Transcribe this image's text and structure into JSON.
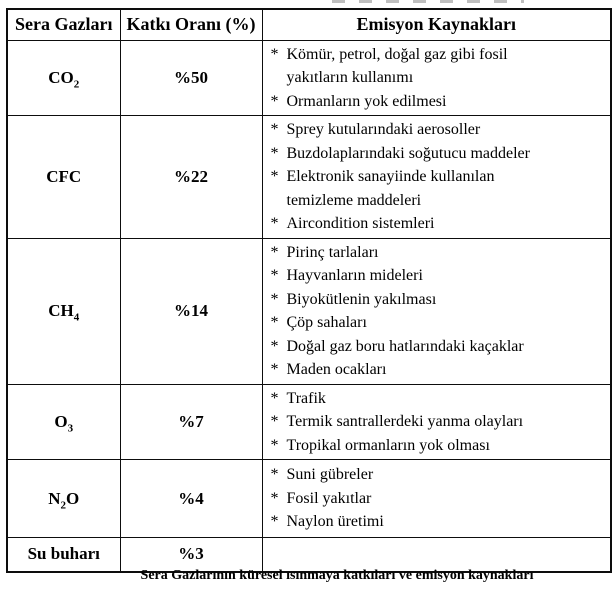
{
  "table": {
    "bullet_char": "*",
    "headers": [
      "Sera Gazları",
      "Katkı Oranı (%)",
      "Emisyon Kaynakları"
    ],
    "rows": [
      {
        "gas_pre": "CO",
        "gas_sub": "2",
        "gas_post": "",
        "percent": "%50",
        "sources": [
          "Kömür, petrol, doğal gaz gibi fosil\nyakıtların kullanımı",
          "Ormanların yok edilmesi"
        ]
      },
      {
        "gas_pre": "CFC",
        "gas_sub": "",
        "gas_post": "",
        "percent": "%22",
        "sources": [
          "Sprey kutularındaki aerosoller",
          "Buzdolaplarındaki soğutucu maddeler",
          "Elektronik sanayiinde kullanılan\ntemizleme maddeleri",
          "Aircondition sistemleri"
        ]
      },
      {
        "gas_pre": "CH",
        "gas_sub": "4",
        "gas_post": "",
        "percent": "%14",
        "sources": [
          "Pirinç tarlaları",
          "Hayvanların mideleri",
          "Biyokütlenin yakılması",
          "Çöp sahaları",
          "Doğal gaz boru hatlarındaki kaçaklar",
          "Maden ocakları"
        ]
      },
      {
        "gas_pre": "O",
        "gas_sub": "3",
        "gas_post": "",
        "percent": "%7",
        "sources": [
          "Trafik",
          "Termik santrallerdeki yanma olayları",
          "Tropikal ormanların yok olması"
        ]
      },
      {
        "gas_pre": "N",
        "gas_sub": "2",
        "gas_post": "O",
        "percent": "%4",
        "sources": [
          "Suni gübreler",
          "Fosil yakıtlar",
          "Naylon üretimi"
        ]
      },
      {
        "gas_pre": "Su buharı",
        "gas_sub": "",
        "gas_post": "",
        "percent": "%3",
        "sources": []
      }
    ]
  },
  "caption": "Sera Gazlarının küresel ısınmaya katkıları ve emisyon kaynakları"
}
